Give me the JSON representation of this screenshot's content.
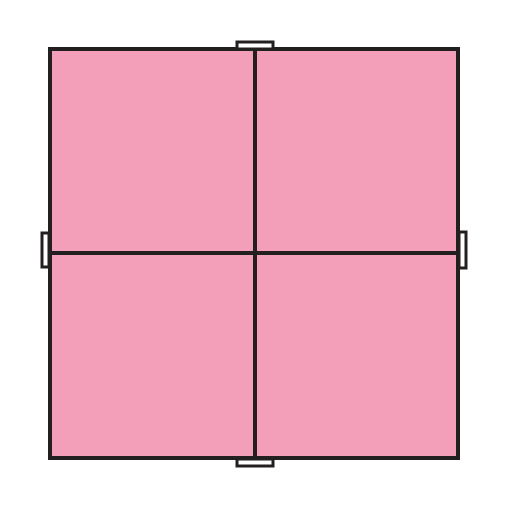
{
  "diagram": {
    "rows": 2,
    "cols": 2,
    "colors": {
      "fill": "#f49fba",
      "stroke": "#231f20",
      "background": "#ffffff"
    },
    "tabs": [
      "top",
      "bottom",
      "left",
      "right"
    ]
  }
}
